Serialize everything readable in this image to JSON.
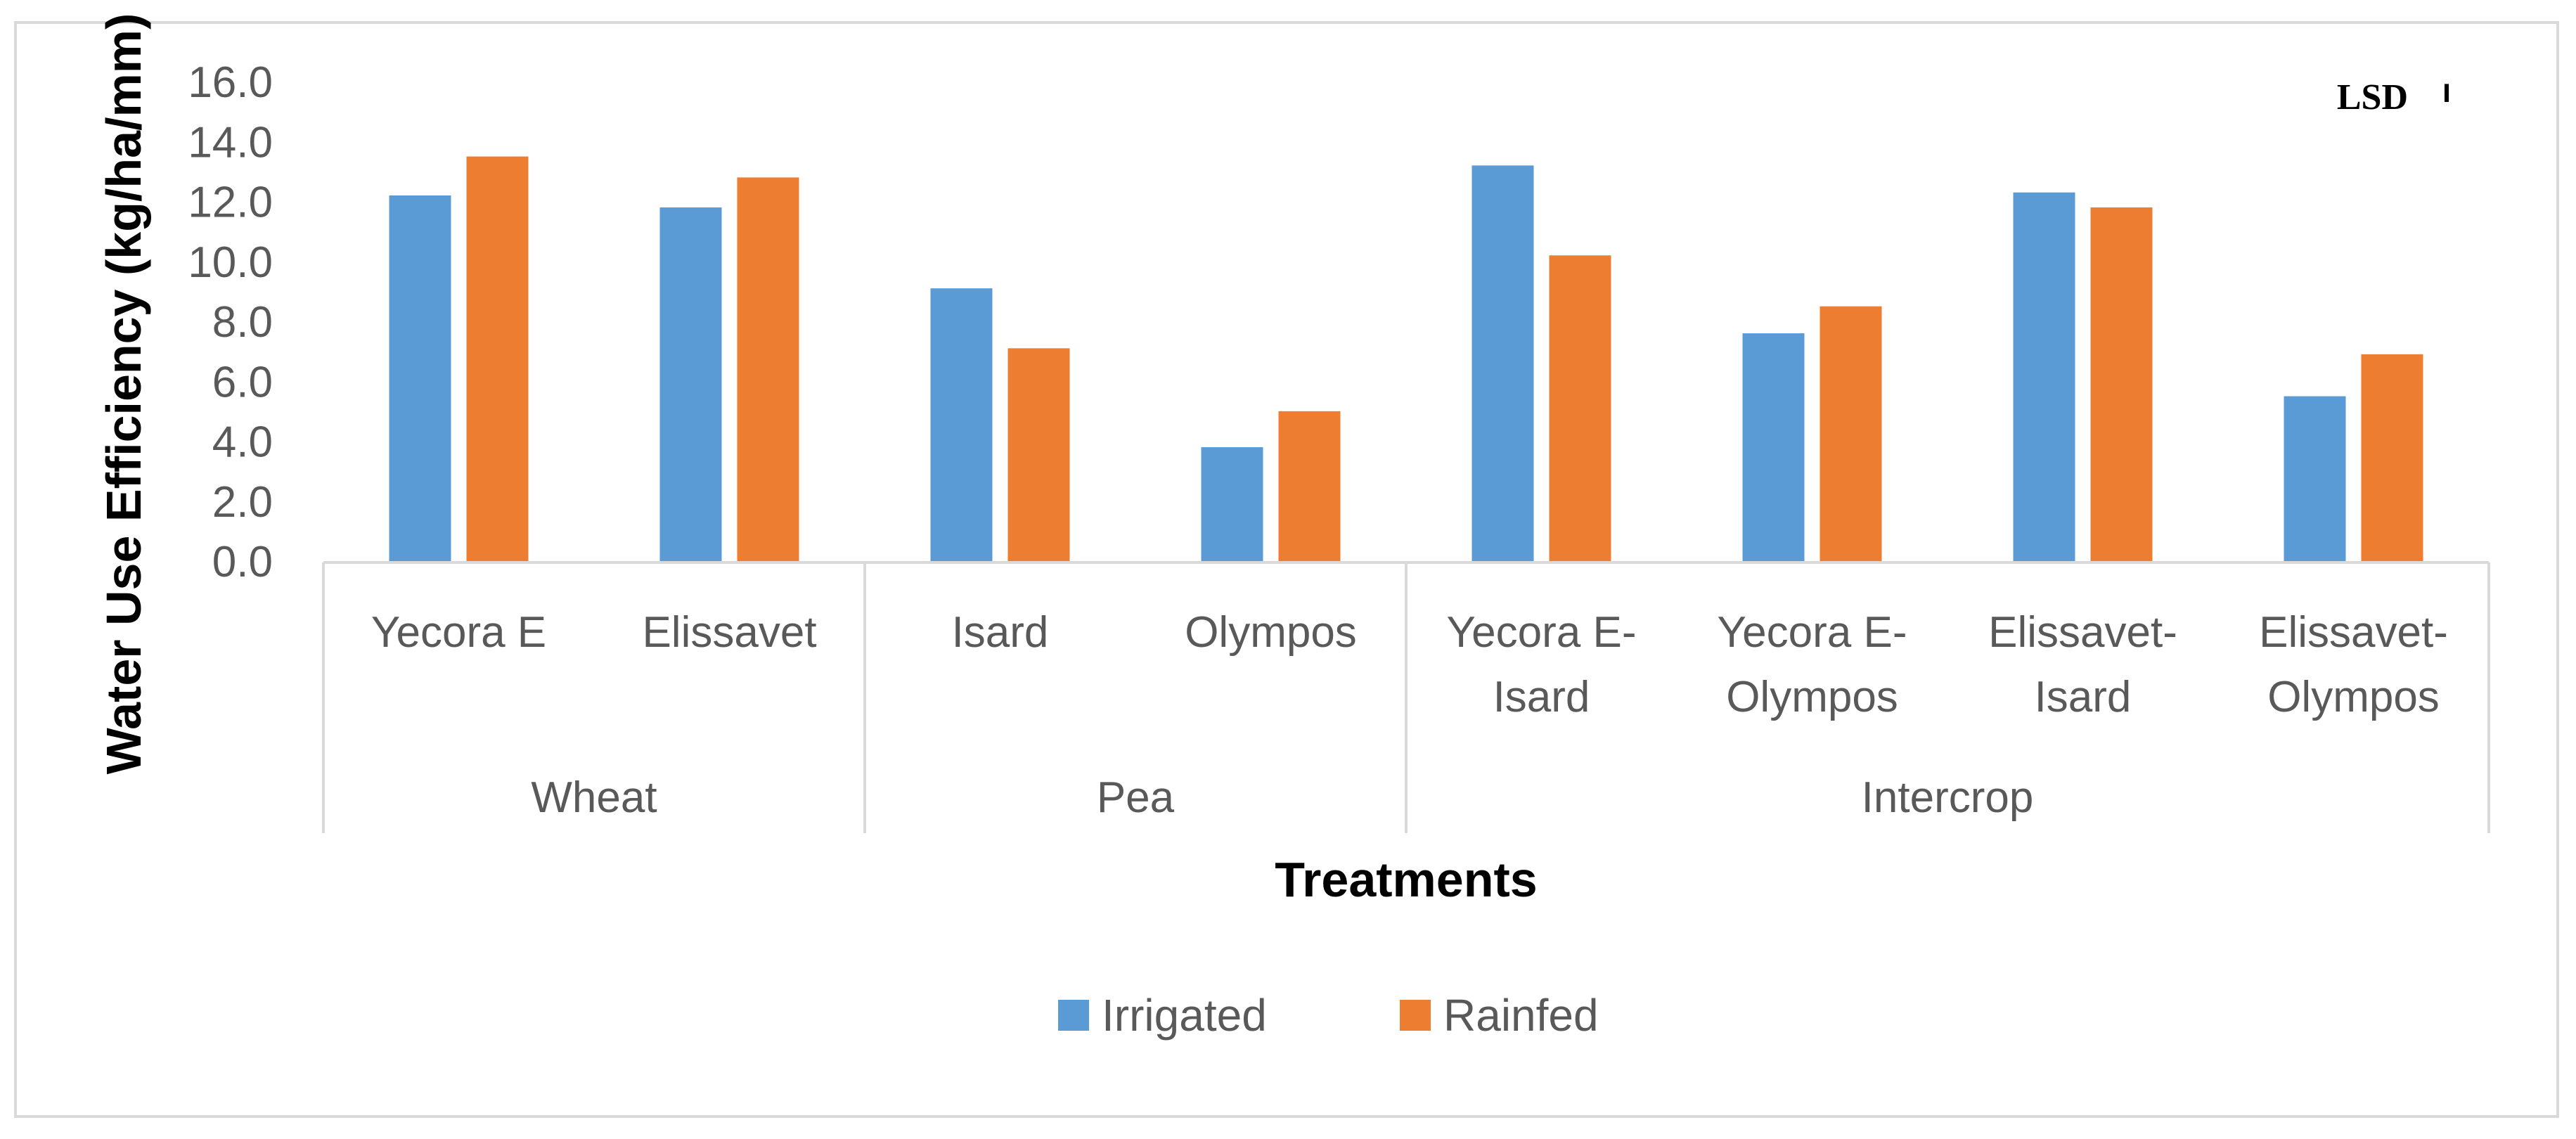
{
  "chart_data": {
    "type": "bar",
    "title": "",
    "xlabel": "Treatments",
    "ylabel": "Water Use Efficiency (kg/ha/mm)",
    "ylim": [
      0,
      16
    ],
    "yticks": [
      "0.0",
      "2.0",
      "4.0",
      "6.0",
      "8.0",
      "10.0",
      "12.0",
      "14.0",
      "16.0"
    ],
    "categories": [
      [
        "Yecora E"
      ],
      [
        "Elissavet"
      ],
      [
        "Isard"
      ],
      [
        "Olympos"
      ],
      [
        "Yecora E-",
        "Isard"
      ],
      [
        "Yecora E-",
        "Olympos"
      ],
      [
        "Elissavet-",
        "Isard"
      ],
      [
        "Elissavet-",
        "Olympos"
      ]
    ],
    "groups": [
      {
        "label": "Wheat",
        "start": 0,
        "count": 2
      },
      {
        "label": "Pea",
        "start": 2,
        "count": 2
      },
      {
        "label": "Intercrop",
        "start": 4,
        "count": 4
      }
    ],
    "series": [
      {
        "name": "Irrigated",
        "color": "#5b9bd5",
        "values": [
          12.2,
          11.8,
          9.1,
          3.8,
          13.2,
          7.6,
          12.3,
          5.5
        ]
      },
      {
        "name": "Rainfed",
        "color": "#ed7d31",
        "values": [
          13.5,
          12.8,
          7.1,
          5.0,
          10.2,
          8.5,
          11.8,
          6.9
        ]
      }
    ],
    "legend_position": "bottom",
    "annotation": {
      "label": "LSD",
      "value": 0.6
    }
  }
}
